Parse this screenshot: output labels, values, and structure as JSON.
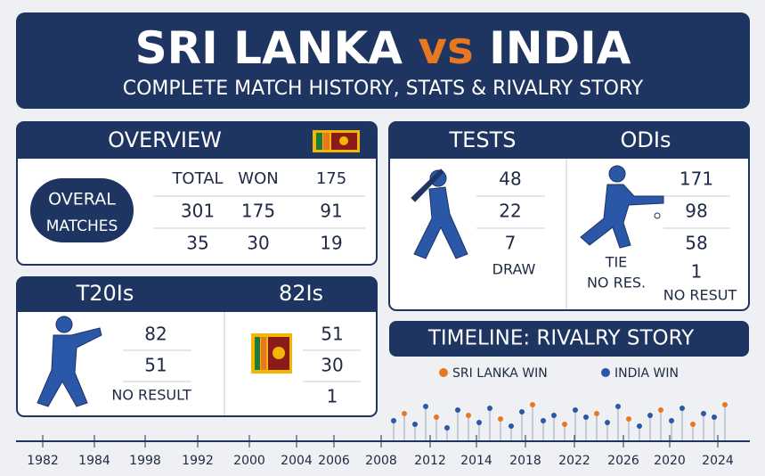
{
  "header": {
    "title_left": "SRI LANKA",
    "title_vs": "vs",
    "title_right": "INDIA",
    "subtitle": "COMPLETE MATCH HISTORY, STATS & RIVALRY STORY"
  },
  "overview": {
    "title": "OVERVIEW",
    "label": [
      "OVERAL",
      "MATCHES"
    ],
    "columns": [
      "TOTAL",
      "WON",
      "175"
    ],
    "rows": [
      [
        "301",
        "175",
        "91"
      ],
      [
        "35",
        "30",
        "19"
      ]
    ]
  },
  "tests": {
    "title": "TESTS",
    "values": [
      "48",
      "22",
      "7"
    ],
    "note": "DRAW"
  },
  "odis": {
    "title": "ODIs",
    "values": [
      "171",
      "98",
      "58",
      "1"
    ],
    "notes": [
      "TIE",
      "NO RES."
    ],
    "last": "NO RESUT"
  },
  "t20is": {
    "title": "T20Is",
    "values": [
      "82",
      "51"
    ],
    "note": "NO RESULT"
  },
  "second": {
    "title": "82Is",
    "values": [
      "51",
      "30",
      "1"
    ]
  },
  "timeline": {
    "title": "TIMELINE: RIVALRY STORY",
    "legend": [
      "SRI LANKA WIN",
      "INDIA WIN"
    ],
    "years": [
      "1982",
      "1984",
      "1998",
      "1992",
      "2000",
      "2004",
      "2006",
      "2008",
      "2012",
      "2014",
      "2018",
      "2022",
      "2026",
      "2020",
      "2024"
    ]
  }
}
